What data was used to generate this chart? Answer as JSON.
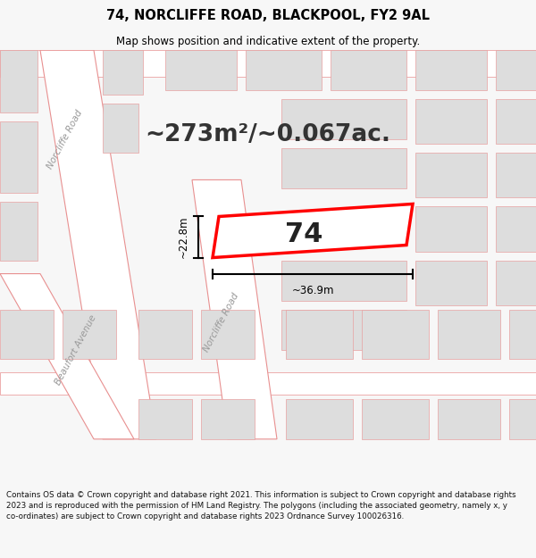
{
  "title": "74, NORCLIFFE ROAD, BLACKPOOL, FY2 9AL",
  "subtitle": "Map shows position and indicative extent of the property.",
  "area_text": "~273m²/~0.067ac.",
  "label_74": "74",
  "dim_width": "~36.9m",
  "dim_height": "~22.8m",
  "road_label_nw": "Norcliffe Road",
  "road_label_se": "Norcliffe Road",
  "road_label_ba": "Beaufort Avenue",
  "footer_text": "Contains OS data © Crown copyright and database right 2021. This information is subject to Crown copyright and database rights 2023 and is reproduced with the permission of HM Land Registry. The polygons (including the associated geometry, namely x, y co-ordinates) are subject to Crown copyright and database rights 2023 Ordnance Survey 100026316.",
  "bg_color": "#f7f7f7",
  "map_bg": "#efefef",
  "road_fill": "#ffffff",
  "block_fill": "#dddddd",
  "block_edge": "#e8a0a0",
  "road_edge": "#e8a0a0",
  "plot_fill": "#ffffff",
  "plot_edge": "#ff0000",
  "street_line_color": "#e89090",
  "title_color": "#000000",
  "footer_color": "#111111",
  "dim_color": "#000000",
  "label_color": "#999999"
}
